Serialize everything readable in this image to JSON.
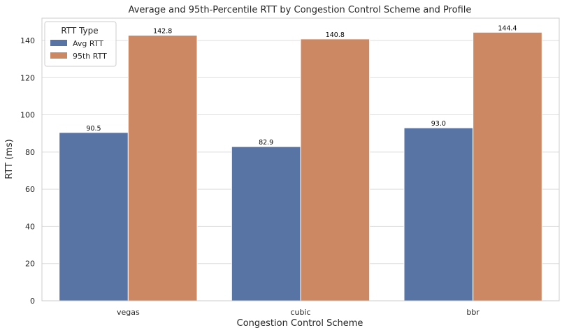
{
  "chart_data": {
    "type": "bar",
    "title": "Average and 95th-Percentile RTT by Congestion Control Scheme and Profile",
    "xlabel": "Congestion Control Scheme",
    "ylabel": "RTT (ms)",
    "categories": [
      "vegas",
      "cubic",
      "bbr"
    ],
    "series": [
      {
        "name": "Avg RTT",
        "values": [
          90.5,
          82.9,
          93.0
        ],
        "color": "#5874a5"
      },
      {
        "name": "95th RTT",
        "values": [
          142.8,
          140.8,
          144.4
        ],
        "color": "#cc8862"
      }
    ],
    "data_labels": [
      [
        "90.5",
        "82.9",
        "93.0"
      ],
      [
        "142.8",
        "140.8",
        "144.4"
      ]
    ],
    "ylim": [
      0,
      152
    ],
    "yticks": [
      0,
      20,
      40,
      60,
      80,
      100,
      120,
      140
    ],
    "ytick_labels": [
      "0",
      "20",
      "40",
      "60",
      "80",
      "100",
      "120",
      "140"
    ],
    "grid": true,
    "legend": {
      "title": "RTT Type",
      "position": "top-left"
    }
  }
}
